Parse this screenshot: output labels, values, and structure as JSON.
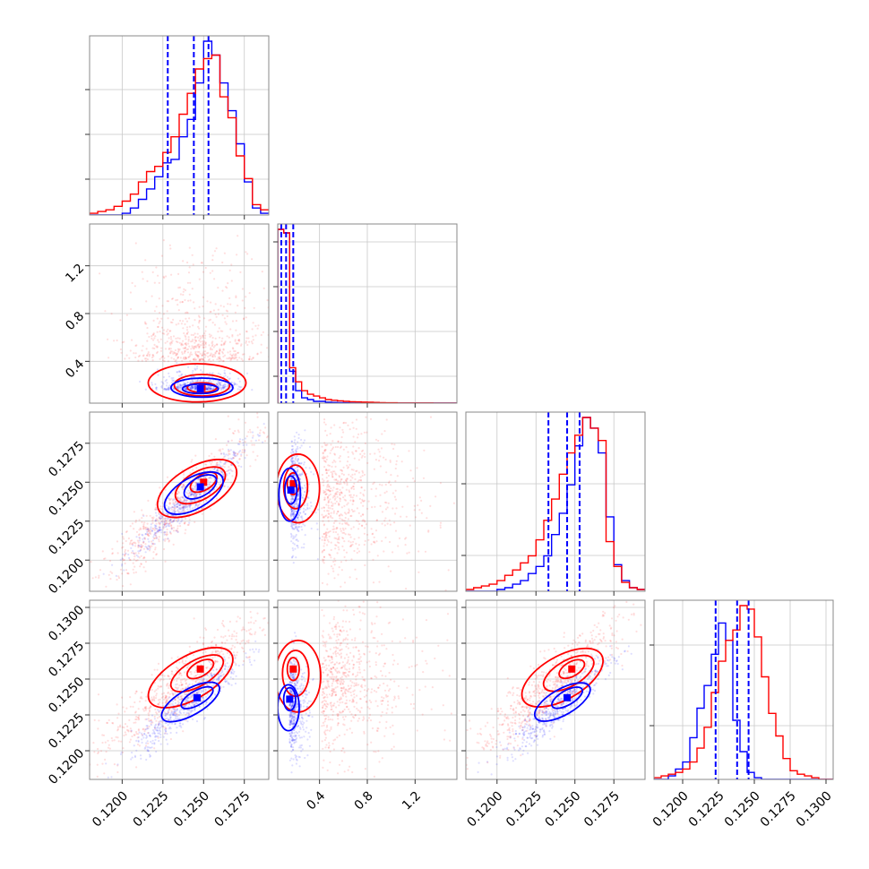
{
  "chart_data": {
    "type": "corner",
    "colors": {
      "series_a": "#0000ff",
      "series_b": "#ff0000"
    },
    "style": {
      "grid": true,
      "quantile_lines": "dashed",
      "quantile_color": "#0000ff"
    },
    "variables": [
      {
        "id": "p0",
        "range": [
          0.118,
          0.129
        ]
      },
      {
        "id": "p1",
        "range": [
          0.05,
          1.55
        ]
      },
      {
        "id": "p2",
        "range": [
          0.118,
          0.1295
        ]
      },
      {
        "id": "p3",
        "range": [
          0.118,
          0.1305
        ]
      }
    ],
    "axes": {
      "x_ticks": [
        {
          "values": [
            0.12,
            0.1225,
            0.125,
            0.1275
          ],
          "labels": [
            "0.1200",
            "0.1225",
            "0.1250",
            "0.1275"
          ]
        },
        {
          "values": [
            0.4,
            0.8,
            1.2
          ],
          "labels": [
            "0.4",
            "0.8",
            "1.2"
          ]
        },
        {
          "values": [
            0.12,
            0.1225,
            0.125,
            0.1275
          ],
          "labels": [
            "0.1200",
            "0.1225",
            "0.1250",
            "0.1275"
          ]
        },
        {
          "values": [
            0.12,
            0.1225,
            0.125,
            0.1275,
            0.13
          ],
          "labels": [
            "0.1200",
            "0.1225",
            "0.1250",
            "0.1275",
            "0.1300"
          ]
        }
      ],
      "y_ticks": [
        null,
        {
          "values": [
            0.4,
            0.8,
            1.2
          ],
          "labels": [
            "0.4",
            "0.8",
            "1.2"
          ]
        },
        {
          "values": [
            0.12,
            0.1225,
            0.125,
            0.1275
          ],
          "labels": [
            "0.1200",
            "0.1225",
            "0.1250",
            "0.1275"
          ]
        },
        {
          "values": [
            0.12,
            0.1225,
            0.125,
            0.1275,
            0.13
          ],
          "labels": [
            "0.1200",
            "0.1225",
            "0.1250",
            "0.1275",
            "0.1300"
          ]
        }
      ],
      "hist_y_ticks": [
        [
          0.2,
          0.45,
          0.7
        ],
        [
          0.15,
          0.4,
          0.65,
          0.9
        ],
        [
          0.2,
          0.6
        ],
        [
          0.3,
          0.75
        ]
      ]
    },
    "histograms": [
      {
        "edges_start": 0.118,
        "edges_step": 0.0005,
        "series_a": [
          0,
          0,
          0,
          0,
          0.01,
          0.04,
          0.09,
          0.15,
          0.22,
          0.3,
          0.32,
          0.45,
          0.55,
          0.76,
          1.0,
          0.92,
          0.76,
          0.6,
          0.41,
          0.19,
          0.04,
          0.01
        ],
        "series_b": [
          0.01,
          0.02,
          0.03,
          0.05,
          0.08,
          0.12,
          0.19,
          0.25,
          0.28,
          0.36,
          0.45,
          0.58,
          0.7,
          0.84,
          0.9,
          0.92,
          0.68,
          0.56,
          0.34,
          0.21,
          0.06,
          0.03
        ],
        "quantiles": [
          0.1228,
          0.1244,
          0.1253
        ]
      },
      {
        "edges_start": 0.05,
        "edges_step": 0.05,
        "series_a": [
          0.98,
          0.96,
          0.18,
          0.07,
          0.03,
          0.02,
          0.01,
          0.01,
          0.005,
          0.004,
          0.003,
          0.002,
          0.001,
          0.001,
          0.001,
          0.0,
          0.0,
          0.0,
          0.0,
          0.0,
          0.0,
          0.0,
          0.0,
          0.0,
          0.0,
          0.0,
          0.0,
          0.0,
          0.0,
          0.0
        ],
        "series_b": [
          0.98,
          0.96,
          0.2,
          0.12,
          0.07,
          0.05,
          0.04,
          0.03,
          0.02,
          0.016,
          0.013,
          0.01,
          0.008,
          0.007,
          0.006,
          0.005,
          0.004,
          0.003,
          0.002,
          0.002,
          0.001,
          0.001,
          0.001,
          0.001,
          0.001,
          0.001,
          0.0,
          0.0,
          0.0,
          0.0
        ],
        "quantiles": [
          0.08,
          0.12,
          0.18
        ]
      },
      {
        "edges_start": 0.118,
        "edges_step": 0.0005,
        "series_a": [
          0,
          0,
          0,
          0,
          0.01,
          0.02,
          0.04,
          0.06,
          0.1,
          0.14,
          0.2,
          0.32,
          0.44,
          0.6,
          0.82,
          0.98,
          0.92,
          0.78,
          0.42,
          0.15,
          0.06,
          0.02,
          0.01
        ],
        "series_b": [
          0.01,
          0.02,
          0.03,
          0.04,
          0.06,
          0.09,
          0.12,
          0.16,
          0.2,
          0.29,
          0.4,
          0.52,
          0.66,
          0.78,
          0.88,
          0.98,
          0.92,
          0.85,
          0.28,
          0.14,
          0.05,
          0.02,
          0.01
        ],
        "quantiles": [
          0.1233,
          0.1245,
          0.1253
        ]
      },
      {
        "edges_start": 0.118,
        "edges_step": 0.0005,
        "series_a": [
          0,
          0,
          0.02,
          0.06,
          0.1,
          0.24,
          0.41,
          0.54,
          0.72,
          0.9,
          0.8,
          0.34,
          0.16,
          0.04,
          0.01,
          0,
          0,
          0,
          0,
          0,
          0,
          0,
          0,
          0,
          0
        ],
        "series_b": [
          0.01,
          0.02,
          0.03,
          0.04,
          0.06,
          0.1,
          0.18,
          0.3,
          0.5,
          0.68,
          0.8,
          0.86,
          1.0,
          0.98,
          0.82,
          0.59,
          0.38,
          0.25,
          0.12,
          0.05,
          0.03,
          0.02,
          0.01,
          0,
          0
        ],
        "quantiles": [
          0.1223,
          0.1238,
          0.1246
        ]
      }
    ],
    "pairs": [
      {
        "row": 1,
        "col": 0,
        "rho_a": 0.2,
        "rho_b": -0.1,
        "mean_a": [
          0.1247,
          0.16
        ],
        "sd_a": [
          0.0012,
          0.05
        ],
        "mean_b": [
          0.1246,
          0.4
        ],
        "sd_b": [
          0.0022,
          0.28
        ],
        "contours_a": [
          {
            "cx": 0.1248,
            "cy": 0.17,
            "rx": 0.0011,
            "ry": 0.04
          },
          {
            "cx": 0.1249,
            "cy": 0.18,
            "rx": 0.0019,
            "ry": 0.08
          }
        ],
        "contours_b": [
          {
            "cx": 0.1249,
            "cy": 0.18,
            "rx": 0.0009,
            "ry": 0.04
          },
          {
            "cx": 0.1249,
            "cy": 0.2,
            "rx": 0.0017,
            "ry": 0.09
          },
          {
            "cx": 0.1246,
            "cy": 0.22,
            "rx": 0.003,
            "ry": 0.16
          }
        ]
      },
      {
        "row": 2,
        "col": 0,
        "rho_a": 0.95,
        "rho_b": 0.93,
        "mean_a": [
          0.124,
          0.1238
        ],
        "sd_a": [
          0.0017,
          0.0017
        ],
        "mean_b": [
          0.1235,
          0.1234
        ],
        "sd_b": [
          0.0025,
          0.0025
        ],
        "contours_a": [
          {
            "cx": 0.1248,
            "cy": 0.1247,
            "rx": 0.0011,
            "ry": 0.0006,
            "angle": 30
          },
          {
            "cx": 0.1244,
            "cy": 0.1243,
            "rx": 0.002,
            "ry": 0.001,
            "angle": 30
          }
        ],
        "contours_b": [
          {
            "cx": 0.125,
            "cy": 0.125,
            "rx": 0.0009,
            "ry": 0.0005,
            "angle": 30
          },
          {
            "cx": 0.1248,
            "cy": 0.1248,
            "rx": 0.0017,
            "ry": 0.0009,
            "angle": 30
          },
          {
            "cx": 0.1246,
            "cy": 0.1246,
            "rx": 0.0027,
            "ry": 0.0014,
            "angle": 30
          }
        ]
      },
      {
        "row": 2,
        "col": 1,
        "rho_a": -0.1,
        "rho_b": -0.05,
        "mean_a": [
          0.16,
          0.1242
        ],
        "sd_a": [
          0.05,
          0.0017
        ],
        "mean_b": [
          0.42,
          0.124
        ],
        "sd_b": [
          0.28,
          0.0025
        ],
        "contours_a": [
          {
            "cx": 0.16,
            "cy": 0.1245,
            "rx": 0.05,
            "ry": 0.0009
          },
          {
            "cx": 0.15,
            "cy": 0.1242,
            "rx": 0.09,
            "ry": 0.0017
          }
        ],
        "contours_b": [
          {
            "cx": 0.18,
            "cy": 0.1249,
            "rx": 0.05,
            "ry": 0.0007
          },
          {
            "cx": 0.2,
            "cy": 0.1247,
            "rx": 0.1,
            "ry": 0.0014
          },
          {
            "cx": 0.22,
            "cy": 0.1246,
            "rx": 0.18,
            "ry": 0.0022
          }
        ]
      },
      {
        "row": 3,
        "col": 0,
        "rho_a": 0.93,
        "rho_b": 0.9,
        "mean_a": [
          0.124,
          0.1232
        ],
        "sd_a": [
          0.0017,
          0.0017
        ],
        "mean_b": [
          0.1235,
          0.1245
        ],
        "sd_b": [
          0.0025,
          0.0025
        ],
        "contours_a": [
          {
            "cx": 0.1246,
            "cy": 0.1237,
            "rx": 0.0011,
            "ry": 0.0005,
            "angle": 30
          },
          {
            "cx": 0.1242,
            "cy": 0.1234,
            "rx": 0.002,
            "ry": 0.0009,
            "angle": 30
          }
        ],
        "contours_b": [
          {
            "cx": 0.1248,
            "cy": 0.1257,
            "rx": 0.0009,
            "ry": 0.0005,
            "angle": 30
          },
          {
            "cx": 0.1246,
            "cy": 0.1254,
            "rx": 0.0018,
            "ry": 0.0009,
            "angle": 30
          },
          {
            "cx": 0.1242,
            "cy": 0.1251,
            "rx": 0.0029,
            "ry": 0.0015,
            "angle": 30
          }
        ]
      },
      {
        "row": 3,
        "col": 1,
        "rho_a": -0.1,
        "rho_b": -0.05,
        "mean_a": [
          0.15,
          0.1232
        ],
        "sd_a": [
          0.05,
          0.0016
        ],
        "mean_b": [
          0.42,
          0.1246
        ],
        "sd_b": [
          0.28,
          0.0025
        ],
        "contours_a": [
          {
            "cx": 0.15,
            "cy": 0.1236,
            "rx": 0.05,
            "ry": 0.0008
          },
          {
            "cx": 0.14,
            "cy": 0.123,
            "rx": 0.09,
            "ry": 0.0016
          }
        ],
        "contours_b": [
          {
            "cx": 0.18,
            "cy": 0.1257,
            "rx": 0.05,
            "ry": 0.0008
          },
          {
            "cx": 0.2,
            "cy": 0.1254,
            "rx": 0.11,
            "ry": 0.0016
          },
          {
            "cx": 0.22,
            "cy": 0.1252,
            "rx": 0.19,
            "ry": 0.0025
          }
        ]
      },
      {
        "row": 3,
        "col": 2,
        "rho_a": 0.93,
        "rho_b": 0.9,
        "mean_a": [
          0.124,
          0.1232
        ],
        "sd_a": [
          0.0017,
          0.0017
        ],
        "mean_b": [
          0.1235,
          0.1245
        ],
        "sd_b": [
          0.0025,
          0.0025
        ],
        "contours_a": [
          {
            "cx": 0.1245,
            "cy": 0.1237,
            "rx": 0.0011,
            "ry": 0.0005,
            "angle": 30
          },
          {
            "cx": 0.1242,
            "cy": 0.1234,
            "rx": 0.002,
            "ry": 0.0009,
            "angle": 30
          }
        ],
        "contours_b": [
          {
            "cx": 0.1248,
            "cy": 0.1257,
            "rx": 0.0009,
            "ry": 0.0005,
            "angle": 30
          },
          {
            "cx": 0.1246,
            "cy": 0.1254,
            "rx": 0.0018,
            "ry": 0.0009,
            "angle": 30
          },
          {
            "cx": 0.1242,
            "cy": 0.1251,
            "rx": 0.0029,
            "ry": 0.0015,
            "angle": 30
          }
        ]
      }
    ]
  }
}
